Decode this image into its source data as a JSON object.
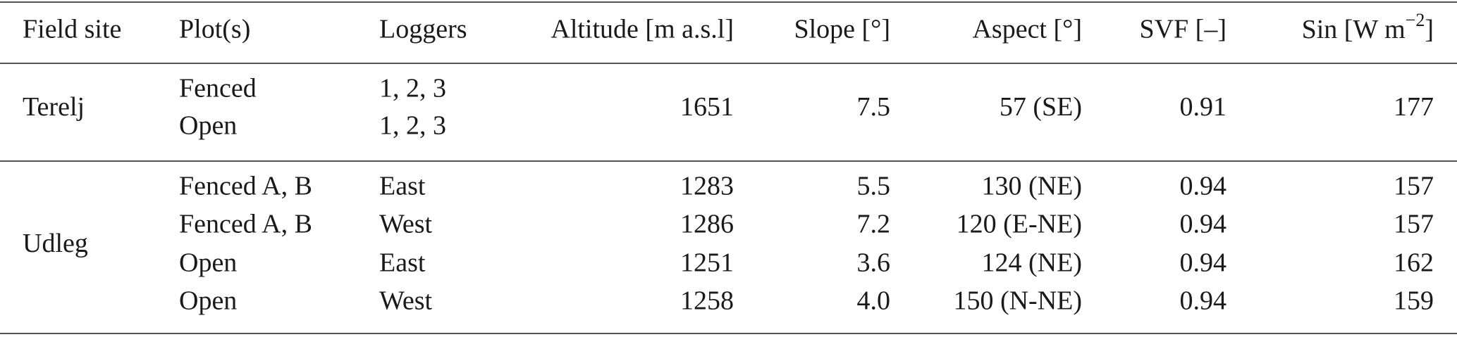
{
  "table": {
    "header": [
      "Field site",
      "Plot(s)",
      "Loggers",
      "Altitude [m a.s.l]",
      "Slope [°]",
      "Aspect [°]",
      "SVF [–]",
      {
        "text": "Sin [W m",
        "sup": "−2",
        "tail": "]"
      }
    ],
    "groups": [
      {
        "site": "Terelj",
        "rows": [
          [
            "Fenced",
            "1, 2, 3"
          ],
          [
            "Open",
            "1, 2, 3"
          ]
        ],
        "shared": [
          "1651",
          "7.5",
          "57 (SE)",
          "0.91",
          "177"
        ]
      },
      {
        "site": "Udleg",
        "rows": [
          [
            "Fenced A, B",
            "East",
            "1283",
            "5.5",
            "130 (NE)",
            "0.94",
            "157"
          ],
          [
            "Fenced A, B",
            "West",
            "1286",
            "7.2",
            "120 (E-NE)",
            "0.94",
            "157"
          ],
          [
            "Open",
            "East",
            "1251",
            "3.6",
            "124 (NE)",
            "0.94",
            "162"
          ],
          [
            "Open",
            "West",
            "1258",
            "4.0",
            "150 (N-NE)",
            "0.94",
            "159"
          ]
        ]
      }
    ]
  }
}
